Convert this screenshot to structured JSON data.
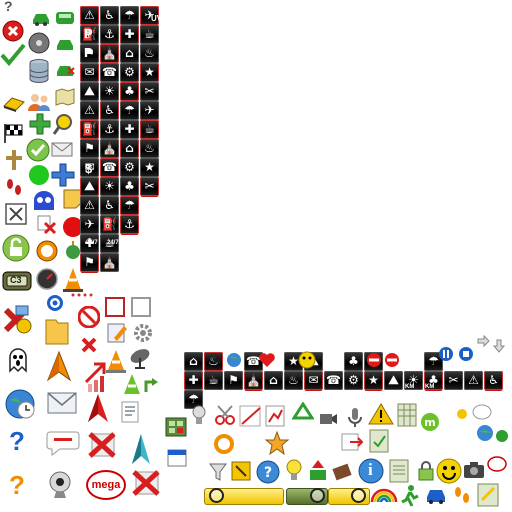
{
  "labels": {
    "w_logo": "W",
    "parking": "P",
    "uv": "UV",
    "dollar": "$",
    "hours": "24/7",
    "km": "KM",
    "c3": "C3",
    "mega": "mega",
    "info": "i",
    "question": "?"
  },
  "colors": {
    "red": "#d81e1e",
    "green": "#2e9e2e",
    "blue": "#1d5fc9",
    "yellow": "#f4c400",
    "orange": "#f28c00",
    "black_tile": "#111111",
    "gray": "#9a9a9a"
  },
  "icons": [
    "question-icon",
    "cancel-icon",
    "checkmark-icon",
    "eraser-icon",
    "checkered-flag-icon",
    "pin-icon",
    "footprints-icon",
    "close-box-icon",
    "unlock-icon",
    "battery-icon",
    "shapes-icon",
    "ghost-icon",
    "ghost-question-icon",
    "globe-clock-icon",
    "question-blue-icon",
    "question-orange-icon",
    "car-icon",
    "cd-icon",
    "database-icon",
    "users-icon",
    "plus-green-icon",
    "plus-blue-icon",
    "green-circle-icon",
    "blue-ghost-icon",
    "compass-icon",
    "cone-icon",
    "target-icon",
    "folder-icon",
    "north-arrow-icon",
    "envelope-icon",
    "speech-bubble-icon",
    "webcam-icon",
    "stop-icon",
    "edit-icon",
    "settings-icon",
    "cone-green-icon",
    "satellite-icon",
    "arrow-up-icon",
    "report-icon",
    "map-icon",
    "warning-icon",
    "star-icon",
    "lightbulb-icon",
    "smiley-icon",
    "camera-icon",
    "rainbow-icon",
    "scissors-icon",
    "recycle-icon",
    "heart-icon",
    "zoom-out-icon",
    "zoom-in-icon"
  ]
}
